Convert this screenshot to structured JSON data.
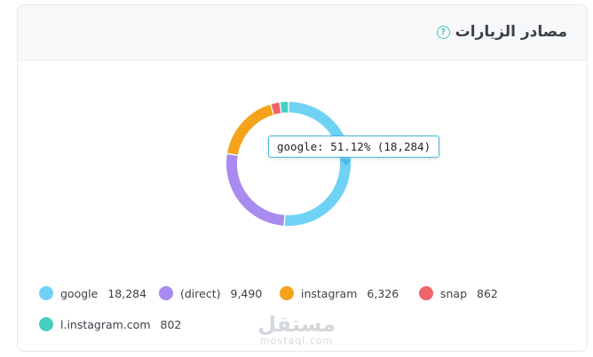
{
  "card": {
    "title": "مصادر الزيارات",
    "help_icon": "question-circle-icon"
  },
  "tooltip": {
    "text": "google: 51.12% (18,284)"
  },
  "chart_data": {
    "type": "pie",
    "donut": true,
    "categories": [
      "google",
      "(direct)",
      "instagram",
      "snap",
      "l.instagram.com"
    ],
    "values": [
      18284,
      9490,
      6326,
      862,
      802
    ],
    "colors": [
      "#6fd2f5",
      "#a98bef",
      "#f5a31a",
      "#f0646b",
      "#46cfc0"
    ],
    "legend_position": "bottom"
  },
  "legend": [
    {
      "label": "google",
      "value": "18,284"
    },
    {
      "label": "(direct)",
      "value": "9,490"
    },
    {
      "label": "instagram",
      "value": "6,326"
    },
    {
      "label": "snap",
      "value": "862"
    },
    {
      "label": "l.instagram.com",
      "value": "802"
    }
  ],
  "watermark": {
    "logo": "مستقل",
    "sub": "mostaql.com"
  }
}
